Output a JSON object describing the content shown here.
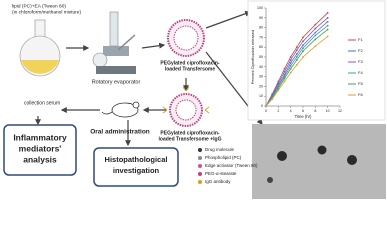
{
  "lipid_text": {
    "lines": [
      "lipid (PC)+EA (Tween 80)",
      "(in chloroform/methanol mixture)"
    ]
  },
  "evaporator_label": "Rotatory evaporator",
  "vesicle_label": {
    "lines": [
      "PEGylated ciprofloxacin-",
      "loaded Transfersome"
    ]
  },
  "vesicle_igg_label": {
    "lines": [
      "PEGylated ciprofloxacin-",
      "loaded Transfersome +IgG"
    ]
  },
  "oral_label": "Oral administration",
  "serum_label": "collection serum",
  "box_inflammatory": {
    "lines": [
      "Inflammatory",
      "mediators'",
      "analysis"
    ]
  },
  "box_histo": {
    "lines": [
      "Histopathological",
      "investigation"
    ]
  },
  "legend": [
    "Drug molecule",
    "Phospholipid (PC)",
    "Edge activator (Tween 80)",
    "PEG-α-stearate",
    "IgG antibody"
  ],
  "release_chart": {
    "type": "line",
    "ylabel": "Percent Ciprofloxacin released",
    "xlabel": "Time (hr)",
    "x": [
      0,
      1,
      2,
      3,
      4,
      5,
      6,
      8,
      10
    ],
    "xlim": [
      0,
      12
    ],
    "xticks": [
      0,
      2,
      4,
      6,
      8,
      10,
      12
    ],
    "ylim": [
      0,
      100
    ],
    "yticks": [
      0,
      10,
      20,
      30,
      40,
      50,
      60,
      70,
      80,
      90,
      100
    ],
    "series": [
      {
        "name": "F1",
        "color": "#e0403a",
        "values": [
          0,
          12,
          25,
          38,
          50,
          60,
          70,
          83,
          95
        ]
      },
      {
        "name": "F2",
        "color": "#4a6fd0",
        "values": [
          0,
          11,
          23,
          35,
          47,
          57,
          66,
          79,
          90
        ]
      },
      {
        "name": "F3",
        "color": "#8a58c0",
        "values": [
          0,
          10,
          21,
          32,
          44,
          53,
          62,
          75,
          86
        ]
      },
      {
        "name": "F4",
        "color": "#2ea6b8",
        "values": [
          0,
          9,
          20,
          30,
          41,
          50,
          59,
          72,
          82
        ]
      },
      {
        "name": "F5",
        "color": "#46a046",
        "values": [
          0,
          8,
          18,
          28,
          38,
          47,
          56,
          68,
          78
        ]
      },
      {
        "name": "F6",
        "color": "#e89a30",
        "values": [
          0,
          7,
          16,
          25,
          34,
          42,
          50,
          61,
          71
        ]
      }
    ]
  }
}
